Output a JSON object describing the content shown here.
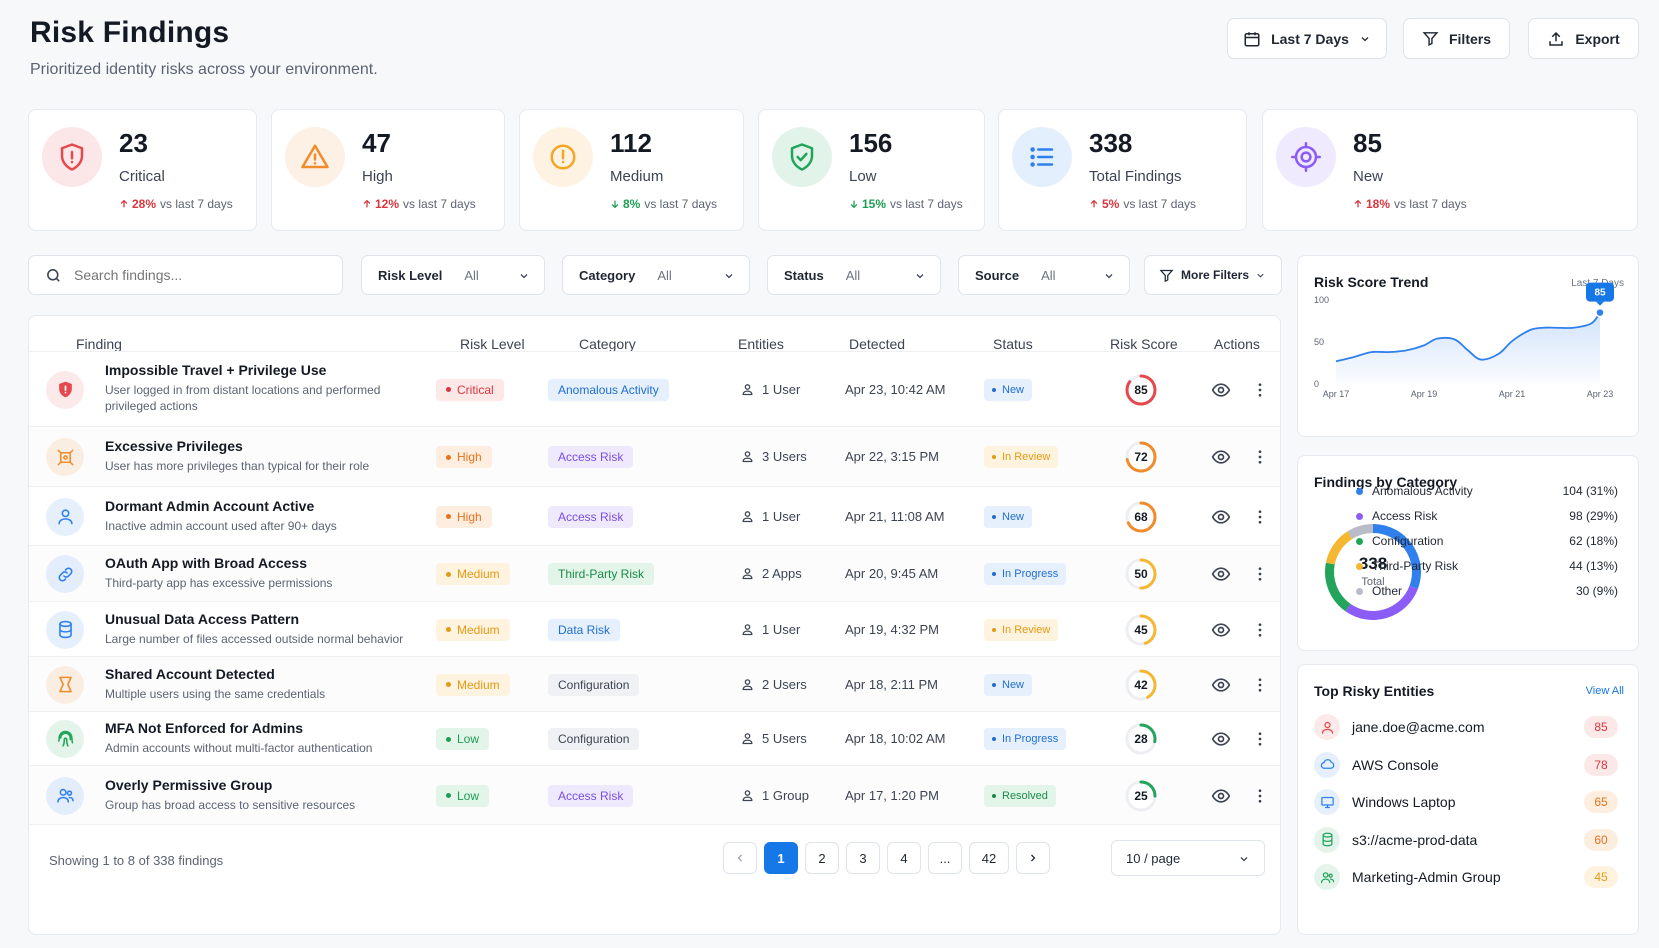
{
  "header": {
    "title": "Risk Findings",
    "subtitle": "Prioritized identity risks across your environment.",
    "date_range": "Last 7 Days",
    "filters_label": "Filters",
    "export_label": "Export"
  },
  "kpis": [
    {
      "value": "23",
      "label": "Critical",
      "delta": "28%",
      "delta_dir": "up",
      "delta_suffix": "vs last 7 days",
      "icon": "shield-alert-icon",
      "color": "#e5484d"
    },
    {
      "value": "47",
      "label": "High",
      "delta": "12%",
      "delta_dir": "up",
      "delta_suffix": "vs last 7 days",
      "icon": "warning-triangle-icon",
      "color": "#f08c2b"
    },
    {
      "value": "112",
      "label": "Medium",
      "delta": "8%",
      "delta_dir": "down",
      "delta_suffix": "vs last 7 days",
      "icon": "alert-circle-icon",
      "color": "#f5a524"
    },
    {
      "value": "156",
      "label": "Low",
      "delta": "15%",
      "delta_dir": "down",
      "delta_suffix": "vs last 7 days",
      "icon": "shield-check-icon",
      "color": "#22a55a"
    },
    {
      "value": "338",
      "label": "Total Findings",
      "delta": "5%",
      "delta_dir": "up",
      "delta_suffix": "vs last 7 days",
      "icon": "list-icon",
      "color": "#2f80ed"
    },
    {
      "value": "85",
      "label": "New",
      "delta": "18%",
      "delta_dir": "up",
      "delta_suffix": "vs last 7 days",
      "icon": "target-icon",
      "color": "#8b5cf6"
    }
  ],
  "filters": {
    "search_placeholder": "Search findings...",
    "risk_level": {
      "label": "Risk Level",
      "value": "All"
    },
    "category": {
      "label": "Category",
      "value": "All"
    },
    "status": {
      "label": "Status",
      "value": "All"
    },
    "source": {
      "label": "Source",
      "value": "All"
    },
    "more_filters": "More Filters"
  },
  "table": {
    "columns": [
      "Finding",
      "Risk Level",
      "Category",
      "Entities",
      "Detected",
      "Status",
      "Risk Score",
      "Actions"
    ],
    "rows": [
      {
        "icon": "shield-alert-icon",
        "title": "Impossible Travel + Privilege Use",
        "desc": "User logged in from distant locations and performed privileged actions",
        "risk": "Critical",
        "category": "Anomalous Activity",
        "entities": "1 User",
        "detected": "Apr 23, 10:42 AM",
        "status": "New",
        "score": 85
      },
      {
        "icon": "key-privilege-icon",
        "title": "Excessive Privileges",
        "desc": "User has more privileges than typical for their role",
        "risk": "High",
        "category": "Access Risk",
        "entities": "3 Users",
        "detected": "Apr 22, 3:15 PM",
        "status": "In Review",
        "score": 72
      },
      {
        "icon": "user-icon",
        "title": "Dormant Admin Account Active",
        "desc": "Inactive admin account used after 90+ days",
        "risk": "High",
        "category": "Access Risk",
        "entities": "1 User",
        "detected": "Apr 21, 11:08 AM",
        "status": "New",
        "score": 68
      },
      {
        "icon": "link-icon",
        "title": "OAuth App with Broad Access",
        "desc": "Third-party app has excessive permissions",
        "risk": "Medium",
        "category": "Third-Party Risk",
        "entities": "2 Apps",
        "detected": "Apr 20, 9:45 AM",
        "status": "In Progress",
        "score": 50
      },
      {
        "icon": "database-icon",
        "title": "Unusual Data Access Pattern",
        "desc": "Large number of files accessed outside normal behavior",
        "risk": "Medium",
        "category": "Data Risk",
        "entities": "1 User",
        "detected": "Apr 19, 4:32 PM",
        "status": "In Review",
        "score": 45
      },
      {
        "icon": "shared-account-icon",
        "title": "Shared Account Detected",
        "desc": "Multiple users using the same credentials",
        "risk": "Medium",
        "category": "Configuration",
        "entities": "2 Users",
        "detected": "Apr 18, 2:11 PM",
        "status": "New",
        "score": 42
      },
      {
        "icon": "fingerprint-icon",
        "title": "MFA Not Enforced for Admins",
        "desc": "Admin accounts without multi-factor authentication",
        "risk": "Low",
        "category": "Configuration",
        "entities": "5 Users",
        "detected": "Apr 18, 10:02 AM",
        "status": "In Progress",
        "score": 28
      },
      {
        "icon": "group-icon",
        "title": "Overly Permissive Group",
        "desc": "Group has broad access to sensitive resources",
        "risk": "Low",
        "category": "Access Risk",
        "entities": "1 Group",
        "detected": "Apr 17, 1:20 PM",
        "status": "Resolved",
        "score": 25
      }
    ],
    "showing": "Showing 1 to 8 of 338 findings",
    "pages": [
      "1",
      "2",
      "3",
      "4",
      "...",
      "42"
    ],
    "per_page": "10 / page"
  },
  "trend": {
    "title": "Risk Score Trend",
    "range": "Last 7 Days",
    "badge": "85",
    "chart_data": {
      "type": "area",
      "title": "Risk Score Trend",
      "x_ticks": [
        "Apr 17",
        "Apr 19",
        "Apr 21",
        "Apr 23"
      ],
      "y_ticks": [
        "100",
        "50",
        "0"
      ],
      "ylim": [
        0,
        100
      ],
      "x": [
        0,
        0.4,
        0.8,
        1.2,
        1.6,
        2.0,
        2.3,
        2.7,
        3.0,
        3.3,
        3.7,
        4.0,
        4.4,
        4.7,
        5.0,
        5.4,
        5.8,
        6.0
      ],
      "values": [
        27,
        32,
        38,
        38,
        40,
        46,
        54,
        53,
        40,
        29,
        36,
        51,
        64,
        67,
        67,
        67,
        72,
        85
      ],
      "grid": false
    }
  },
  "categories": {
    "title": "Findings by Category",
    "total": "338",
    "total_label": "Total",
    "chart_data": {
      "type": "pie",
      "labels": [
        "Anomalous Activity",
        "Access Risk",
        "Configuration",
        "Third-Party Risk",
        "Other"
      ],
      "values": [
        104,
        98,
        62,
        44,
        30
      ],
      "display": [
        "104 (31%)",
        "98 (29%)",
        "62 (18%)",
        "44 (13%)",
        "30 (9%)"
      ],
      "colors": [
        "#2f80ed",
        "#8b5cf6",
        "#22a55a",
        "#f5b731",
        "#b8bcc6"
      ]
    }
  },
  "top_entities": {
    "title": "Top Risky Entities",
    "view_all": "View All",
    "items": [
      {
        "name": "jane.doe@acme.com",
        "score": "85",
        "icon": "user-icon"
      },
      {
        "name": "AWS Console",
        "score": "78",
        "icon": "cloud-icon"
      },
      {
        "name": "Windows Laptop",
        "score": "65",
        "icon": "monitor-icon"
      },
      {
        "name": "s3://acme-prod-data",
        "score": "60",
        "icon": "database-icon"
      },
      {
        "name": "Marketing-Admin Group",
        "score": "45",
        "icon": "group-icon"
      }
    ]
  }
}
